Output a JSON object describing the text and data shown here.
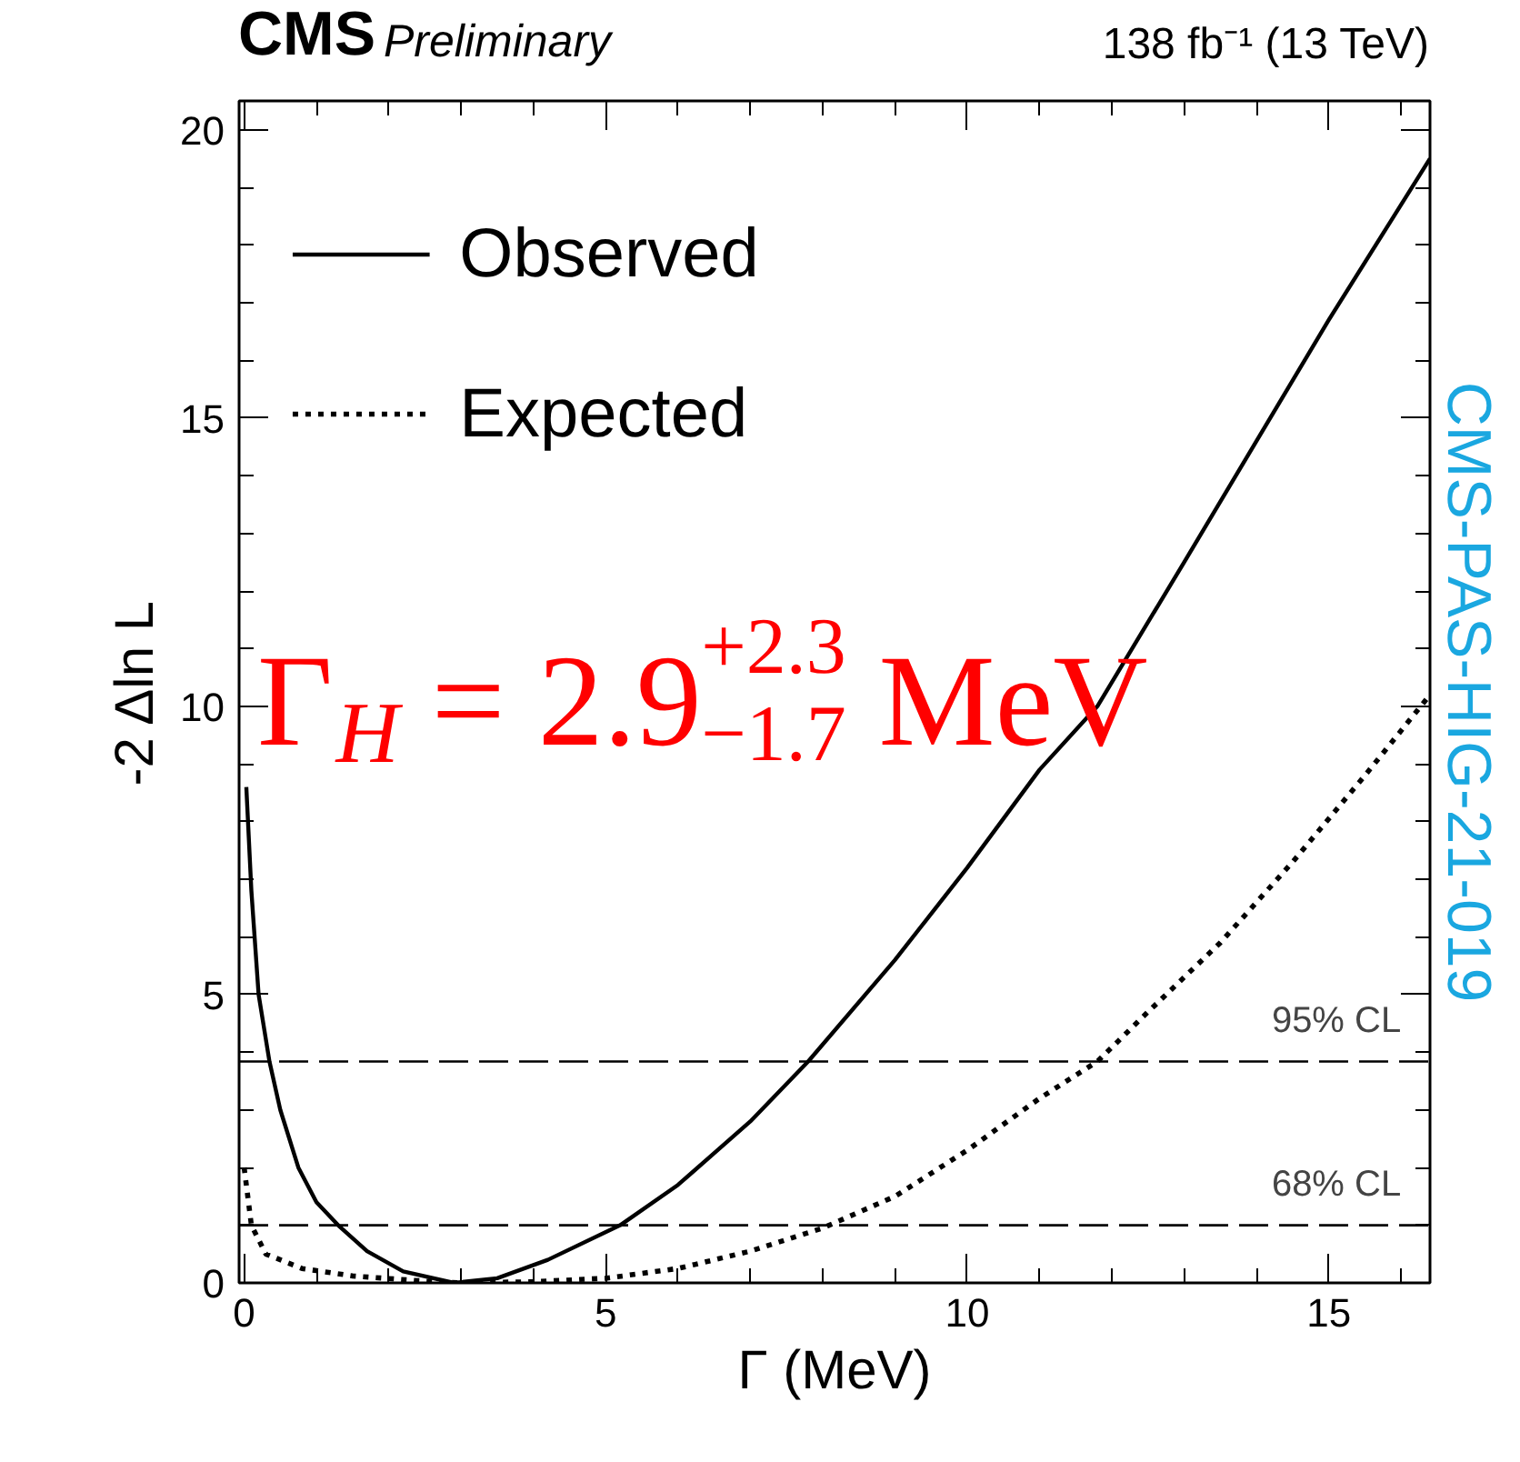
{
  "chart_data": {
    "type": "line",
    "title": "CMS",
    "subtitle": "Preliminary",
    "xlabel": "Γ (MeV)",
    "ylabel": "-2 Δln L",
    "xlim": [
      -0.07,
      16.4
    ],
    "ylim": [
      0,
      20.5
    ],
    "xticks": [
      0,
      5,
      10,
      15
    ],
    "yticks": [
      0,
      5,
      10,
      15,
      20
    ],
    "legend": "top left",
    "grid": false,
    "series": [
      {
        "name": "Observed",
        "color": "#000000",
        "line_style": "solid",
        "x": [
          0.03,
          0.1,
          0.2,
          0.35,
          0.5,
          0.75,
          1.0,
          1.3,
          1.7,
          2.2,
          2.9,
          3.5,
          4.2,
          5.2,
          6,
          7,
          7.8,
          9,
          10,
          11,
          11.8,
          13,
          14,
          15,
          16.4
        ],
        "values": [
          8.6,
          6.8,
          5.0,
          3.84,
          3.0,
          2.0,
          1.4,
          1.0,
          0.55,
          0.2,
          0,
          0.08,
          0.4,
          1.0,
          1.7,
          2.8,
          3.84,
          5.6,
          7.2,
          8.9,
          10,
          12.5,
          14.6,
          16.7,
          19.5
        ]
      },
      {
        "name": "Expected",
        "color": "#000000",
        "line_style": "dotted",
        "x": [
          0.0,
          0.1,
          0.3,
          0.8,
          1.5,
          2.5,
          3,
          4,
          5,
          6,
          7,
          8,
          9,
          10,
          11,
          11.8,
          12.5,
          13.5,
          14.5,
          15.5,
          16.4
        ],
        "values": [
          2.0,
          1.0,
          0.5,
          0.25,
          0.12,
          0.03,
          0,
          0.02,
          0.08,
          0.25,
          0.55,
          0.95,
          1.5,
          2.3,
          3.2,
          3.84,
          4.7,
          5.9,
          7.3,
          8.8,
          10.2
        ]
      }
    ],
    "ref_lines": [
      {
        "axis": "y",
        "value": 3.84,
        "label": "95% CL",
        "line_style": "dashed",
        "color": "#000000"
      },
      {
        "axis": "y",
        "value": 1,
        "label": "68% CL",
        "line_style": "dashed",
        "color": "#000000"
      }
    ],
    "annotations": [
      "138 fb⁻¹ (13 TeV)",
      "Γ$_{H}$ = 2.9$^{+2.3}$$_{−1.7}$ MeV",
      "CMS-PAS-HIG-21-019"
    ]
  }
}
